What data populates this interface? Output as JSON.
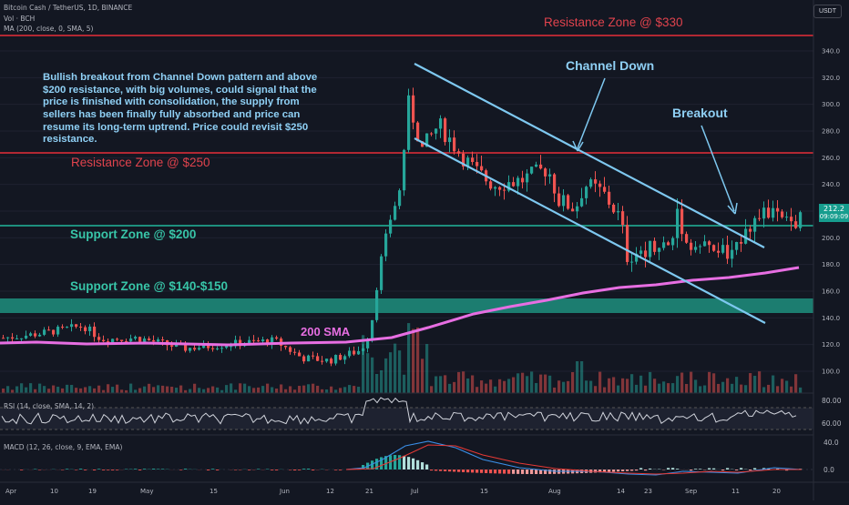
{
  "header": {
    "symbol_line": "Bitcoin Cash / TetherUS, 1D, BINANCE",
    "volume_line": "Vol · BCH",
    "ma_line": "MA (200, close, 0, SMA, 5)",
    "currency_button": "USDT"
  },
  "annotations": {
    "note": "Bullish breakout from Channel Down pattern and above $200 resistance, with big volumes, could signal that the price is finished with consolidation, the supply from sellers has been finally fully absorbed and price can resume its long-term uptrend. Price could revisit $250 resistance.",
    "channel_down": "Channel Down",
    "breakout": "Breakout",
    "sma_label": "200 SMA",
    "resistance_330": "Resistance Zone @ $330",
    "resistance_250": "Resistance Zone @ $250",
    "support_200": "Support Zone @ $200",
    "support_140": "Support Zone @ $140-$150"
  },
  "price_box": {
    "price": "212.2",
    "countdown": "09:09:09"
  },
  "colors": {
    "background": "#131722",
    "bull": "#26a69a",
    "bear": "#ef5350",
    "resistance": "#b22833",
    "support": "#1e8f7e",
    "channel": "#7ec8f0",
    "sma": "#e76ee2",
    "annotation_text": "#8fd0f5"
  },
  "rsi": {
    "label": "RSI (14, close, SMA, 14, 2)",
    "levels": [
      "80.00",
      "60.00"
    ]
  },
  "macd": {
    "label": "MACD (12, 26, close, 9, EMA, EMA)",
    "levels": [
      "40.0",
      "0.0"
    ]
  },
  "chart_data": {
    "type": "candlestick",
    "y_axis": {
      "scale": "linear",
      "range": [
        90,
        345
      ],
      "ticks": [
        "340.0",
        "320.0",
        "300.0",
        "280.0",
        "260.0",
        "240.0",
        "220.0",
        "200.0",
        "180.0",
        "160.0",
        "140.0",
        "120.0",
        "100.0"
      ]
    },
    "x_axis": {
      "ticks": [
        "Apr",
        "10",
        "19",
        "May",
        "15",
        "Jun",
        "12",
        "21",
        "Jul",
        "15",
        "Aug",
        "14",
        "23",
        "Sep",
        "11",
        "20"
      ]
    },
    "zones": [
      {
        "name": "Resistance Zone @ $330",
        "type": "line",
        "value": 330
      },
      {
        "name": "Resistance Zone @ $250",
        "type": "line",
        "value": 250
      },
      {
        "name": "Support Zone @ $200",
        "type": "line",
        "value": 200
      },
      {
        "name": "Support Zone @ $140-$150",
        "type": "band",
        "low": 140,
        "high": 150
      }
    ],
    "channel_down": {
      "upper": [
        {
          "date": "Jul 1",
          "y": 310
        },
        {
          "date": "Sep 15",
          "y": 184
        }
      ],
      "lower": [
        {
          "date": "Jul 1",
          "y": 261
        },
        {
          "date": "Sep 18",
          "y": 133
        }
      ]
    },
    "sma_200": [
      {
        "date": "Apr 1",
        "y": 117
      },
      {
        "date": "Apr 22",
        "y": 118
      },
      {
        "date": "May 15",
        "y": 118
      },
      {
        "date": "Jun 10",
        "y": 119
      },
      {
        "date": "Jun 28",
        "y": 122
      },
      {
        "date": "Jul 12",
        "y": 133
      },
      {
        "date": "Jul 31",
        "y": 143
      },
      {
        "date": "Aug 17",
        "y": 155
      },
      {
        "date": "Sep 1",
        "y": 160
      },
      {
        "date": "Sep 28",
        "y": 171
      }
    ],
    "candles": [
      {
        "date": "Jun 22",
        "o": 118,
        "h": 132,
        "l": 115,
        "c": 128
      },
      {
        "date": "Jun 25",
        "o": 128,
        "h": 186,
        "l": 126,
        "c": 175
      },
      {
        "date": "Jun 27",
        "o": 175,
        "h": 222,
        "l": 168,
        "c": 215
      },
      {
        "date": "Jun 29",
        "o": 215,
        "h": 305,
        "l": 210,
        "c": 295
      },
      {
        "date": "Jun 30",
        "o": 295,
        "h": 330,
        "l": 288,
        "c": 300
      },
      {
        "date": "Jul 1",
        "o": 300,
        "h": 305,
        "l": 255,
        "c": 268
      },
      {
        "date": "Jul 9",
        "o": 270,
        "h": 285,
        "l": 255,
        "c": 275
      },
      {
        "date": "Jul 20",
        "o": 275,
        "h": 282,
        "l": 228,
        "c": 238
      },
      {
        "date": "Aug 2",
        "o": 238,
        "h": 256,
        "l": 225,
        "c": 245
      },
      {
        "date": "Aug 14",
        "o": 240,
        "h": 245,
        "l": 166,
        "c": 184
      },
      {
        "date": "Aug 25",
        "o": 184,
        "h": 198,
        "l": 180,
        "c": 192
      },
      {
        "date": "Aug 29",
        "o": 192,
        "h": 225,
        "l": 188,
        "c": 220
      },
      {
        "date": "Sep 10",
        "o": 196,
        "h": 200,
        "l": 182,
        "c": 186
      },
      {
        "date": "Sep 13",
        "o": 186,
        "h": 212,
        "l": 185,
        "c": 208
      },
      {
        "date": "Sep 20",
        "o": 215,
        "h": 222,
        "l": 205,
        "c": 210
      },
      {
        "date": "Sep 27",
        "o": 208,
        "h": 216,
        "l": 205,
        "c": 212
      }
    ],
    "last_price": 212.2
  }
}
